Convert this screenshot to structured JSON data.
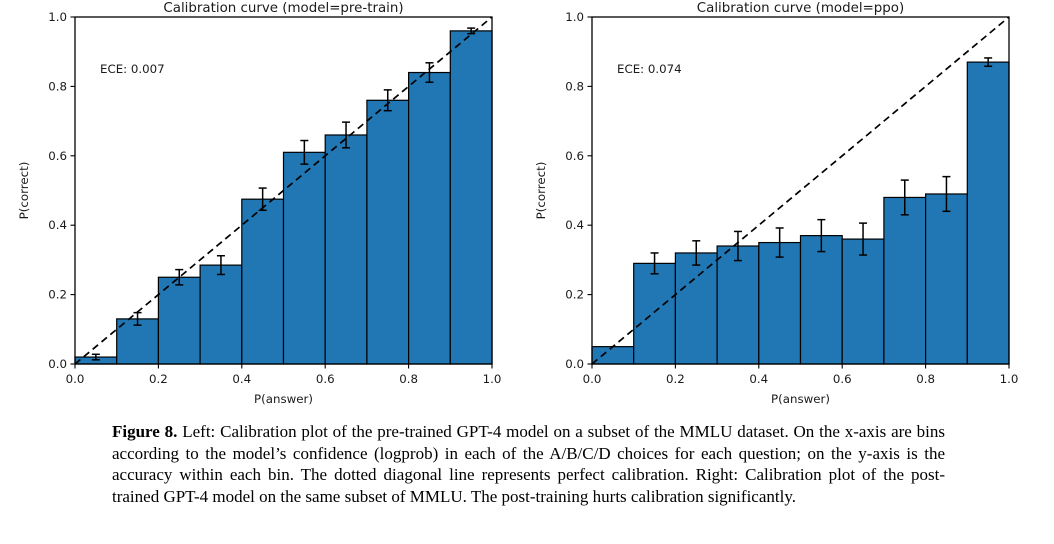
{
  "figure": {
    "caption_label": "Figure 8.",
    "caption_text": " Left: Calibration plot of the pre-trained GPT-4 model on a subset of the MMLU dataset. On the x-axis are bins according to the model’s confidence (logprob) in each of the A/B/C/D choices for each question; on the y-axis is the accuracy within each bin. The dotted diagonal line represents perfect calibration. Right: Calibration plot of the post-trained GPT-4 model on the same subset of MMLU. The post-training hurts calibration significantly."
  },
  "chart_data": [
    {
      "type": "bar",
      "title": "Calibration curve (model=pre-train)",
      "annotation": "ECE: 0.007",
      "xlabel": "P(answer)",
      "ylabel": "P(correct)",
      "xlim": [
        0.0,
        1.0
      ],
      "ylim": [
        0.0,
        1.0
      ],
      "xticks": [
        0.0,
        0.2,
        0.4,
        0.6,
        0.8,
        1.0
      ],
      "yticks": [
        0.0,
        0.2,
        0.4,
        0.6,
        0.8,
        1.0
      ],
      "bin_width": 0.1,
      "bin_left_edges": [
        0.0,
        0.1,
        0.2,
        0.3,
        0.4,
        0.5,
        0.6,
        0.7,
        0.8,
        0.9
      ],
      "values": [
        0.02,
        0.13,
        0.25,
        0.285,
        0.475,
        0.61,
        0.66,
        0.76,
        0.84,
        0.96
      ],
      "errors": [
        0.008,
        0.018,
        0.022,
        0.027,
        0.032,
        0.034,
        0.037,
        0.03,
        0.028,
        0.008
      ],
      "bar_color": "#2077b4",
      "edge_color": "#000000",
      "diagonal_line": "perfect calibration (dashed)",
      "legend_position": "none",
      "grid": false
    },
    {
      "type": "bar",
      "title": "Calibration curve (model=ppo)",
      "annotation": "ECE: 0.074",
      "xlabel": "P(answer)",
      "ylabel": "P(correct)",
      "xlim": [
        0.0,
        1.0
      ],
      "ylim": [
        0.0,
        1.0
      ],
      "xticks": [
        0.0,
        0.2,
        0.4,
        0.6,
        0.8,
        1.0
      ],
      "yticks": [
        0.0,
        0.2,
        0.4,
        0.6,
        0.8,
        1.0
      ],
      "bin_width": 0.1,
      "bin_left_edges": [
        0.0,
        0.1,
        0.2,
        0.3,
        0.4,
        0.5,
        0.6,
        0.7,
        0.8,
        0.9
      ],
      "values": [
        0.05,
        0.29,
        0.32,
        0.34,
        0.35,
        0.37,
        0.36,
        0.48,
        0.49,
        0.87
      ],
      "errors": [
        0,
        0.03,
        0.035,
        0.042,
        0.042,
        0.046,
        0.046,
        0.05,
        0.05,
        0.012
      ],
      "bar_color": "#2077b4",
      "edge_color": "#000000",
      "diagonal_line": "perfect calibration (dashed)",
      "legend_position": "none",
      "grid": false
    }
  ]
}
